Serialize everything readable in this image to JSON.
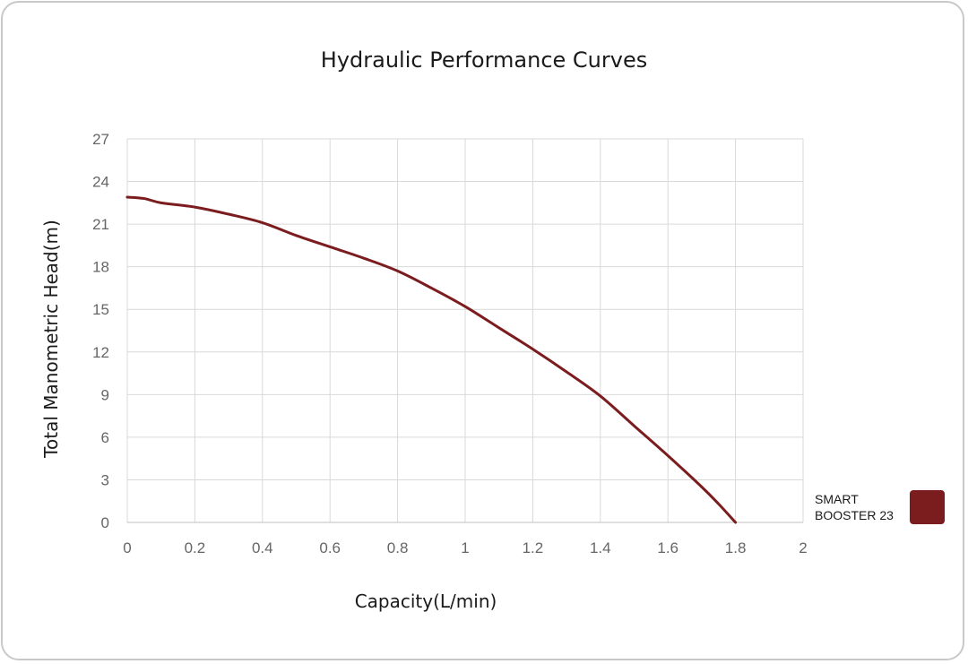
{
  "chart_data": {
    "type": "line",
    "title": "Hydraulic Performance Curves",
    "xlabel": "Capacity(L/min)",
    "ylabel": "Total Manometric Head(m)",
    "xlim": [
      0,
      2
    ],
    "ylim": [
      0,
      27
    ],
    "x_ticks": [
      "0",
      "0.2",
      "0.4",
      "0.6",
      "0.8",
      "1",
      "1.2",
      "1.4",
      "1.6",
      "1.8",
      "2"
    ],
    "y_ticks": [
      "0",
      "3",
      "6",
      "9",
      "12",
      "15",
      "18",
      "21",
      "24",
      "27"
    ],
    "grid": true,
    "legend_position": "right",
    "series": [
      {
        "name": "SMART BOOSTER 23",
        "legend_lines": [
          "SMART",
          "BOOSTER 23"
        ],
        "color": "#7b1c1f",
        "x": [
          0,
          0.05,
          0.1,
          0.2,
          0.3,
          0.4,
          0.5,
          0.6,
          0.7,
          0.8,
          0.9,
          1.0,
          1.1,
          1.2,
          1.3,
          1.4,
          1.5,
          1.6,
          1.7,
          1.75,
          1.8
        ],
        "y": [
          22.9,
          22.8,
          22.5,
          22.2,
          21.7,
          21.1,
          20.2,
          19.4,
          18.6,
          17.7,
          16.5,
          15.2,
          13.7,
          12.2,
          10.6,
          8.9,
          6.8,
          4.7,
          2.5,
          1.3,
          0
        ]
      }
    ]
  }
}
